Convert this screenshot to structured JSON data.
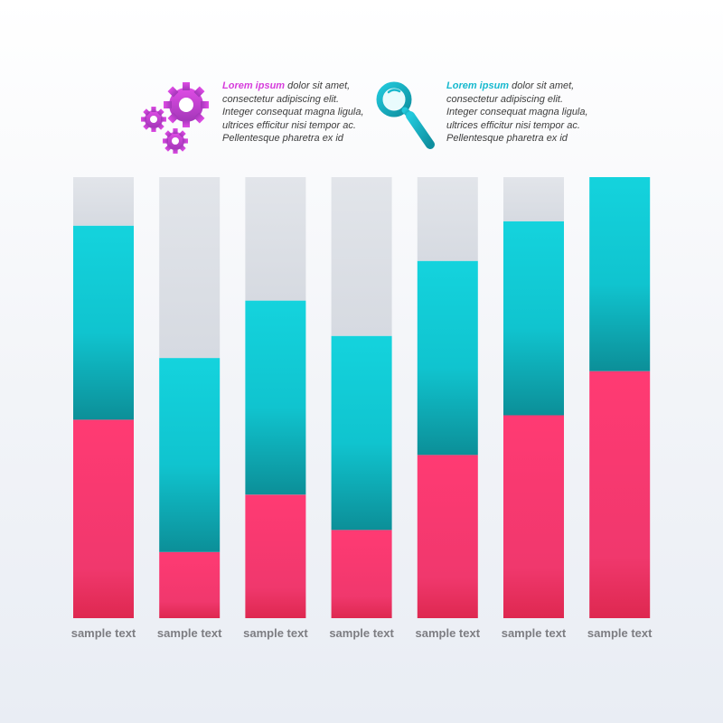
{
  "legend": [
    {
      "highlight": "Lorem ipsum",
      "text": "dolor sit amet, consectetur adipiscing elit. Integer consequat magna ligula, ultrices efficitur nisi tempor ac. Pellentesque pharetra ex id",
      "icon": "gears-icon",
      "color": "#d63ddc"
    },
    {
      "highlight": "Lorem ipsum",
      "text": "dolor sit amet, consectetur adipiscing elit. Integer consequat magna ligula, ultrices efficitur nisi tempor ac. Pellentesque pharetra ex id",
      "icon": "magnifier-icon",
      "color": "#17b9cf"
    }
  ],
  "chart_data": {
    "type": "bar",
    "stacked": true,
    "categories": [
      "sample text",
      "sample text",
      "sample text",
      "sample text",
      "sample text",
      "sample text",
      "sample text"
    ],
    "series": [
      {
        "values": [
          45,
          15,
          28,
          20,
          37,
          46,
          56
        ],
        "color": "#f0386d"
      },
      {
        "values": [
          44,
          44,
          44,
          44,
          44,
          44,
          44
        ],
        "color": "#14d3dd"
      },
      {
        "values": [
          11,
          41,
          28,
          36,
          19,
          10,
          0
        ],
        "color": "#dde1e7"
      }
    ],
    "ylim": [
      0,
      100
    ],
    "grid": false,
    "legend": "none"
  }
}
